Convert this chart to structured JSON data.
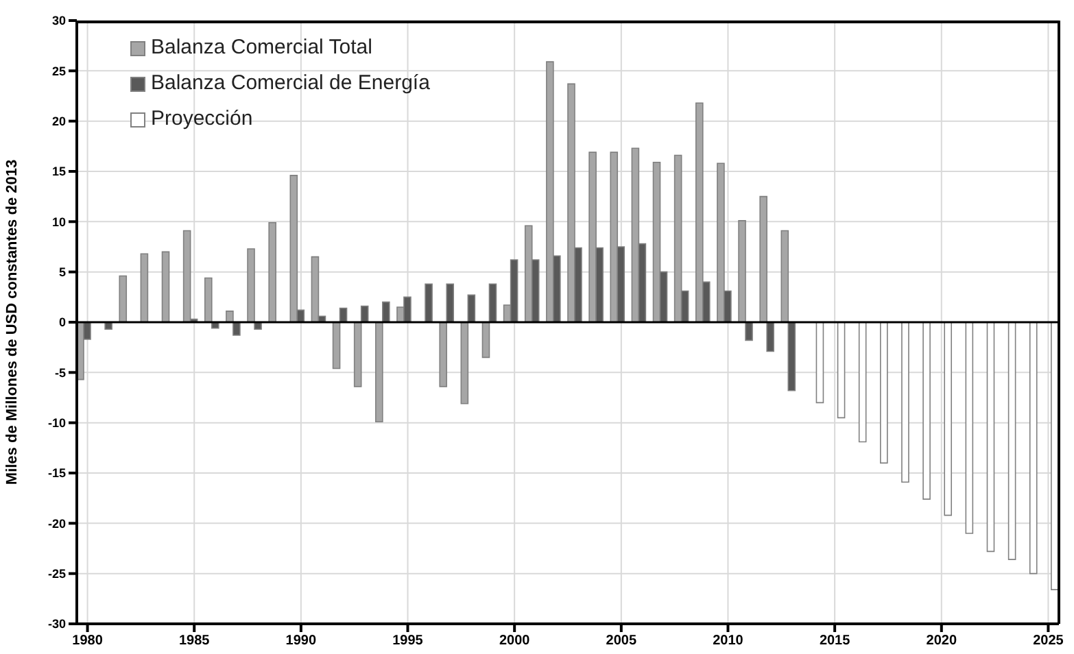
{
  "chart_data": {
    "type": "bar",
    "ylabel": "Miles de Millones de USD constantes de 2013",
    "x": [
      1980,
      1981,
      1982,
      1983,
      1984,
      1985,
      1986,
      1987,
      1988,
      1989,
      1990,
      1991,
      1992,
      1993,
      1994,
      1995,
      1996,
      1997,
      1998,
      1999,
      2000,
      2001,
      2002,
      2003,
      2004,
      2005,
      2006,
      2007,
      2008,
      2009,
      2010,
      2011,
      2012,
      2013,
      2014,
      2015,
      2016,
      2017,
      2018,
      2019,
      2020,
      2021,
      2022,
      2023,
      2024,
      2025
    ],
    "series": [
      {
        "name": "Balanza Comercial Total",
        "color": "#a6a6a6",
        "values": [
          -5.7,
          0,
          4.6,
          6.8,
          7.0,
          9.1,
          4.4,
          1.1,
          7.3,
          9.9,
          14.6,
          6.5,
          -4.6,
          -6.4,
          -9.9,
          1.5,
          0,
          -6.4,
          -8.1,
          -3.5,
          1.7,
          9.6,
          25.9,
          23.7,
          16.9,
          16.9,
          17.3,
          15.9,
          16.6,
          21.8,
          15.8,
          10.1,
          12.5,
          9.1,
          null,
          null,
          null,
          null,
          null,
          null,
          null,
          null,
          null,
          null,
          null,
          null
        ]
      },
      {
        "name": "Balanza Comercial de Energía",
        "color": "#595959",
        "values": [
          -1.7,
          -0.7,
          null,
          null,
          null,
          0.3,
          -0.6,
          -1.3,
          -0.7,
          null,
          1.2,
          0.6,
          1.4,
          1.6,
          2.0,
          2.5,
          3.8,
          3.8,
          2.7,
          3.8,
          6.2,
          6.2,
          6.6,
          7.4,
          7.4,
          7.5,
          7.8,
          5.0,
          3.1,
          4.0,
          3.1,
          -1.8,
          -2.9,
          -6.8,
          null,
          null,
          null,
          null,
          null,
          null,
          null,
          null,
          null,
          null,
          null,
          null
        ]
      },
      {
        "name": "Proyección",
        "color": "#ffffff",
        "values": [
          null,
          null,
          null,
          null,
          null,
          null,
          null,
          null,
          null,
          null,
          null,
          null,
          null,
          null,
          null,
          null,
          null,
          null,
          null,
          null,
          null,
          null,
          null,
          null,
          null,
          null,
          null,
          null,
          null,
          null,
          null,
          null,
          null,
          null,
          -8.0,
          -9.5,
          -11.9,
          -14.0,
          -15.9,
          -17.6,
          -19.2,
          -21.0,
          -22.8,
          -23.6,
          -25.0,
          -26.6
        ]
      }
    ],
    "xlim": [
      1979.5,
      2025.5
    ],
    "xticks": [
      1980,
      1985,
      1990,
      1995,
      2000,
      2005,
      2010,
      2015,
      2020,
      2025
    ],
    "ylim": [
      -30,
      30
    ],
    "yticks": [
      -30,
      -25,
      -20,
      -15,
      -10,
      -5,
      0,
      5,
      10,
      15,
      20,
      25,
      30
    ],
    "grid": true,
    "legend": "top left"
  }
}
